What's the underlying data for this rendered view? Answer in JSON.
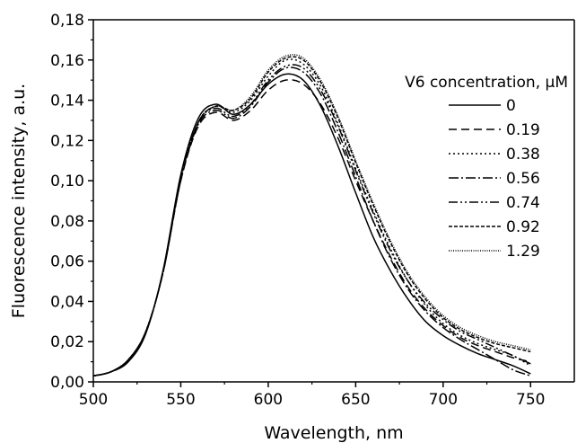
{
  "chart_data": {
    "type": "line",
    "xlabel": "Wavelength, nm",
    "ylabel": "Fluorescence intensity, a.u.",
    "xlim": [
      500,
      775
    ],
    "ylim": [
      0,
      0.18
    ],
    "x_ticks": [
      500,
      550,
      600,
      650,
      700,
      750
    ],
    "x_tick_labels": [
      "500",
      "550",
      "600",
      "650",
      "700",
      "750"
    ],
    "y_ticks": [
      0,
      0.02,
      0.04,
      0.06,
      0.08,
      0.1,
      0.12,
      0.14,
      0.16,
      0.18
    ],
    "y_tick_labels": [
      "0,00",
      "0,02",
      "0,04",
      "0,06",
      "0,08",
      "0,10",
      "0,12",
      "0,14",
      "0,16",
      "0,18"
    ],
    "grid": false,
    "legend": {
      "title": "V6 concentration, μM",
      "placement": "top-right"
    },
    "series": [
      {
        "name": "0",
        "dash": "none",
        "x": [
          500,
          510,
          520,
          530,
          540,
          550,
          560,
          570,
          580,
          590,
          600,
          610,
          620,
          630,
          640,
          650,
          660,
          670,
          680,
          690,
          700,
          710,
          720,
          730,
          740,
          750
        ],
        "y": [
          0.003,
          0.005,
          0.01,
          0.024,
          0.056,
          0.103,
          0.131,
          0.138,
          0.133,
          0.138,
          0.148,
          0.153,
          0.15,
          0.137,
          0.117,
          0.094,
          0.072,
          0.055,
          0.041,
          0.03,
          0.023,
          0.018,
          0.014,
          0.011,
          0.008,
          0.004
        ]
      },
      {
        "name": "0.19",
        "dash": "9,5",
        "x": [
          500,
          510,
          520,
          530,
          540,
          550,
          560,
          570,
          580,
          590,
          600,
          610,
          620,
          630,
          640,
          650,
          660,
          670,
          680,
          690,
          700,
          710,
          720,
          730,
          740,
          750
        ],
        "y": [
          0.003,
          0.005,
          0.011,
          0.025,
          0.055,
          0.1,
          0.127,
          0.134,
          0.13,
          0.135,
          0.145,
          0.15,
          0.148,
          0.138,
          0.121,
          0.1,
          0.08,
          0.062,
          0.047,
          0.036,
          0.028,
          0.022,
          0.018,
          0.015,
          0.012,
          0.01
        ]
      },
      {
        "name": "0.38",
        "dash": "2,3",
        "x": [
          500,
          510,
          520,
          530,
          540,
          550,
          560,
          570,
          580,
          590,
          600,
          610,
          620,
          630,
          640,
          650,
          660,
          670,
          680,
          690,
          700,
          710,
          720,
          730,
          740,
          750
        ],
        "y": [
          0.003,
          0.005,
          0.011,
          0.025,
          0.055,
          0.101,
          0.129,
          0.137,
          0.134,
          0.14,
          0.152,
          0.16,
          0.158,
          0.147,
          0.128,
          0.106,
          0.085,
          0.066,
          0.05,
          0.038,
          0.029,
          0.023,
          0.019,
          0.016,
          0.013,
          0.008
        ]
      },
      {
        "name": "0.56",
        "dash": "11,3,2,3",
        "x": [
          500,
          510,
          520,
          530,
          540,
          550,
          560,
          570,
          580,
          590,
          600,
          610,
          620,
          630,
          640,
          650,
          660,
          670,
          680,
          690,
          700,
          710,
          720,
          730,
          740,
          750
        ],
        "y": [
          0.003,
          0.005,
          0.011,
          0.025,
          0.055,
          0.1,
          0.128,
          0.135,
          0.131,
          0.137,
          0.149,
          0.156,
          0.154,
          0.143,
          0.124,
          0.102,
          0.08,
          0.061,
          0.046,
          0.035,
          0.027,
          0.021,
          0.016,
          0.011,
          0.006,
          0.003
        ]
      },
      {
        "name": "0.74",
        "dash": "10,3,2,3,2,3",
        "x": [
          500,
          510,
          520,
          530,
          540,
          550,
          560,
          570,
          580,
          590,
          600,
          610,
          620,
          630,
          640,
          650,
          660,
          670,
          680,
          690,
          700,
          710,
          720,
          730,
          740,
          750
        ],
        "y": [
          0.003,
          0.005,
          0.011,
          0.025,
          0.055,
          0.101,
          0.129,
          0.136,
          0.132,
          0.138,
          0.15,
          0.157,
          0.156,
          0.145,
          0.127,
          0.105,
          0.084,
          0.065,
          0.05,
          0.039,
          0.031,
          0.025,
          0.021,
          0.017,
          0.013,
          0.009
        ]
      },
      {
        "name": "0.92",
        "dash": "4,2",
        "x": [
          500,
          510,
          520,
          530,
          540,
          550,
          560,
          570,
          580,
          590,
          600,
          610,
          620,
          630,
          640,
          650,
          660,
          670,
          680,
          690,
          700,
          710,
          720,
          730,
          740,
          750
        ],
        "y": [
          0.003,
          0.005,
          0.011,
          0.025,
          0.055,
          0.101,
          0.129,
          0.137,
          0.135,
          0.141,
          0.154,
          0.161,
          0.16,
          0.149,
          0.131,
          0.109,
          0.088,
          0.069,
          0.053,
          0.041,
          0.032,
          0.026,
          0.022,
          0.019,
          0.017,
          0.015
        ]
      },
      {
        "name": "1.29",
        "dash": "1,1.5",
        "x": [
          500,
          510,
          520,
          530,
          540,
          550,
          560,
          570,
          580,
          590,
          600,
          610,
          620,
          630,
          640,
          650,
          660,
          670,
          680,
          690,
          700,
          710,
          720,
          730,
          740,
          750
        ],
        "y": [
          0.003,
          0.005,
          0.011,
          0.025,
          0.055,
          0.101,
          0.129,
          0.137,
          0.135,
          0.142,
          0.155,
          0.162,
          0.161,
          0.15,
          0.132,
          0.11,
          0.089,
          0.07,
          0.054,
          0.042,
          0.033,
          0.027,
          0.023,
          0.02,
          0.018,
          0.016
        ]
      }
    ]
  }
}
